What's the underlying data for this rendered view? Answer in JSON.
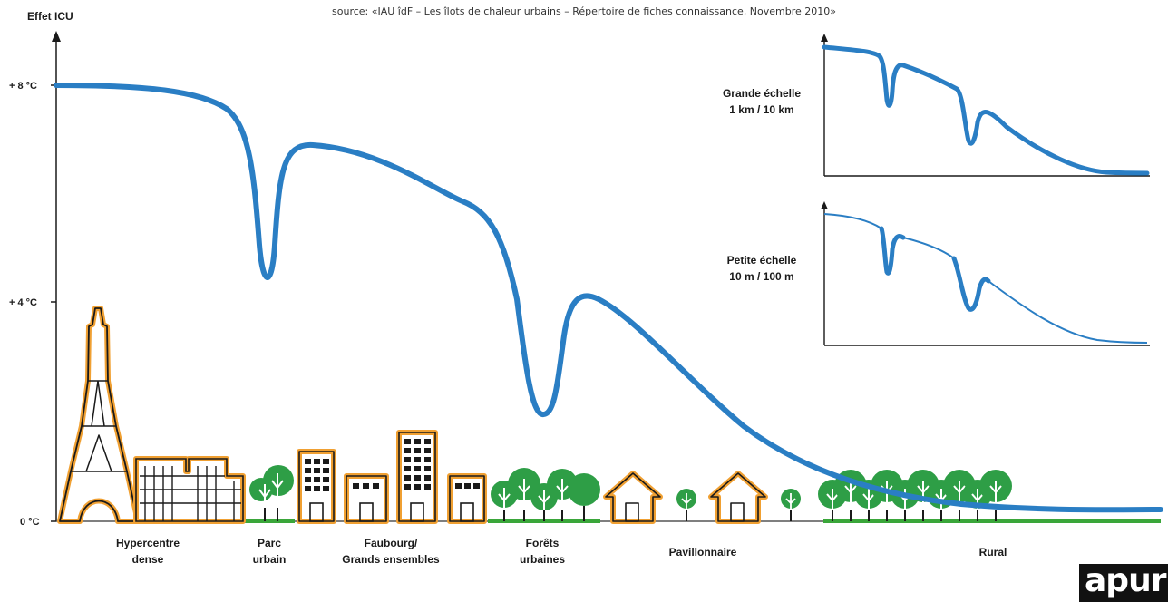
{
  "source_text": "source: «IAU îdF – Les îlots de chaleur urbains – Répertoire de fiches connaissance, Novembre 2010»",
  "axis": {
    "y_title": "Effet ICU",
    "ticks": [
      {
        "label": "+ 8 °C",
        "value": 8
      },
      {
        "label": "+ 4 °C",
        "value": 4
      },
      {
        "label": "0 °C",
        "value": 0
      }
    ]
  },
  "zones": [
    {
      "line1": "Hypercentre",
      "line2": "dense"
    },
    {
      "line1": "Parc",
      "line2": "urbain"
    },
    {
      "line1": "Faubourg/",
      "line2": "Grands ensembles"
    },
    {
      "line1": "Forêts",
      "line2": "urbaines"
    },
    {
      "line1": "Pavillonnaire",
      "line2": ""
    },
    {
      "line1": "Rural",
      "line2": ""
    }
  ],
  "insets": [
    {
      "line1": "Grande échelle",
      "line2": "1 km / 10 km"
    },
    {
      "line1": "Petite échelle",
      "line2": "10 m / 100 m"
    }
  ],
  "logo_text": "apur",
  "colors": {
    "curve": "#2a7ec4",
    "building_outline": "#f0a032",
    "ground_green": "#3aa63a",
    "tree_green": "#2e9e46",
    "ink": "#1a1a1a"
  }
}
